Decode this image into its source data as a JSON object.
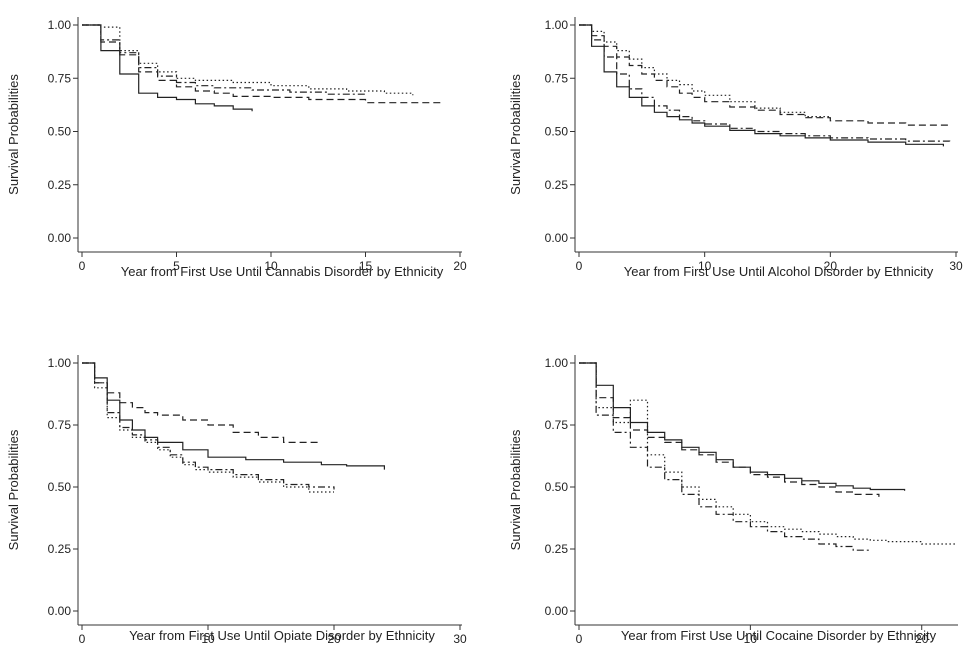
{
  "chart_data": [
    {
      "type": "line",
      "xlabel": "Year from First Use Until Cannabis Disorder by Ethnicity",
      "ylabel": "Survival Probabilities",
      "xlim": [
        0,
        20
      ],
      "ylim": [
        0,
        1
      ],
      "xticks": [
        0,
        5,
        10,
        15,
        20
      ],
      "yticks": [
        0,
        0.25,
        0.5,
        0.75,
        1.0
      ],
      "xtick_labels": [
        "0",
        "5",
        "10",
        "15",
        "20"
      ],
      "ytick_labels": [
        "0.00",
        "0.25",
        "0.50",
        "0.75",
        "1.00"
      ],
      "grid": false,
      "series": [
        {
          "style": "solid",
          "x": [
            0,
            1,
            2,
            3,
            4,
            5,
            6,
            7,
            8,
            9
          ],
          "y": [
            1.0,
            0.88,
            0.77,
            0.68,
            0.66,
            0.65,
            0.63,
            0.62,
            0.605,
            0.595
          ]
        },
        {
          "style": "dashed",
          "x": [
            0,
            1,
            2,
            3,
            4,
            5,
            6,
            7,
            8,
            10,
            12,
            15,
            19
          ],
          "y": [
            1.0,
            0.92,
            0.86,
            0.78,
            0.74,
            0.71,
            0.69,
            0.68,
            0.665,
            0.66,
            0.65,
            0.635,
            0.63
          ]
        },
        {
          "style": "dash-dot",
          "x": [
            0,
            1,
            2,
            3,
            4,
            5,
            6,
            7,
            9,
            11,
            13,
            15
          ],
          "y": [
            1.0,
            0.93,
            0.87,
            0.8,
            0.76,
            0.73,
            0.715,
            0.705,
            0.695,
            0.685,
            0.675,
            0.665
          ]
        },
        {
          "style": "dotted",
          "x": [
            0,
            1,
            2,
            3,
            4,
            5,
            6,
            8,
            10,
            12,
            14,
            16,
            17.5
          ],
          "y": [
            1.0,
            0.99,
            0.88,
            0.82,
            0.78,
            0.75,
            0.74,
            0.73,
            0.715,
            0.7,
            0.69,
            0.68,
            0.67
          ]
        }
      ]
    },
    {
      "type": "line",
      "xlabel": "Year from First Use Until Alcohol Disorder by Ethnicity",
      "ylabel": "Survival Probabilities",
      "xlim": [
        0,
        30
      ],
      "ylim": [
        0,
        1
      ],
      "xticks": [
        0,
        10,
        20,
        30
      ],
      "yticks": [
        0,
        0.25,
        0.5,
        0.75,
        1.0
      ],
      "xtick_labels": [
        "0",
        "10",
        "20",
        "30"
      ],
      "ytick_labels": [
        "0.00",
        "0.25",
        "0.50",
        "0.75",
        "1.00"
      ],
      "grid": false,
      "series": [
        {
          "style": "solid",
          "x": [
            0,
            1,
            2,
            3,
            4,
            5,
            6,
            7,
            8,
            9,
            10,
            12,
            14,
            16,
            18,
            20,
            23,
            26,
            29
          ],
          "y": [
            1.0,
            0.9,
            0.78,
            0.71,
            0.66,
            0.62,
            0.59,
            0.57,
            0.555,
            0.54,
            0.525,
            0.505,
            0.49,
            0.48,
            0.47,
            0.46,
            0.45,
            0.44,
            0.43
          ]
        },
        {
          "style": "dashed",
          "x": [
            0,
            1,
            2,
            3,
            4,
            5,
            6,
            7,
            8,
            9,
            10,
            12,
            14,
            16,
            18,
            20,
            23,
            26,
            29.5
          ],
          "y": [
            1.0,
            0.95,
            0.9,
            0.85,
            0.81,
            0.77,
            0.74,
            0.71,
            0.68,
            0.66,
            0.64,
            0.615,
            0.6,
            0.58,
            0.565,
            0.55,
            0.54,
            0.53,
            0.52
          ]
        },
        {
          "style": "dash-dot",
          "x": [
            0,
            1,
            2,
            3,
            4,
            5,
            6,
            7,
            8,
            9,
            10,
            12,
            14,
            16,
            18,
            20,
            23,
            26,
            29.5
          ],
          "y": [
            1.0,
            0.93,
            0.85,
            0.77,
            0.7,
            0.66,
            0.62,
            0.6,
            0.57,
            0.55,
            0.535,
            0.515,
            0.5,
            0.49,
            0.48,
            0.47,
            0.465,
            0.455,
            0.45
          ]
        },
        {
          "style": "dotted",
          "x": [
            0,
            1,
            2,
            3,
            4,
            5,
            6,
            7,
            8,
            9,
            10,
            12,
            14,
            16,
            18,
            20
          ],
          "y": [
            1.0,
            0.97,
            0.92,
            0.88,
            0.84,
            0.8,
            0.77,
            0.74,
            0.72,
            0.69,
            0.67,
            0.64,
            0.61,
            0.59,
            0.57,
            0.56
          ]
        }
      ]
    },
    {
      "type": "line",
      "xlabel": "Year from First Use Until Opiate Disorder by Ethnicity",
      "ylabel": "Survival Probabilities",
      "xlim": [
        0,
        30
      ],
      "ylim": [
        0,
        1
      ],
      "xticks": [
        0,
        10,
        20,
        30
      ],
      "yticks": [
        0,
        0.25,
        0.5,
        0.75,
        1.0
      ],
      "xtick_labels": [
        "0",
        "10",
        "20",
        "30"
      ],
      "ytick_labels": [
        "0.00",
        "0.25",
        "0.50",
        "0.75",
        "1.00"
      ],
      "grid": false,
      "series": [
        {
          "style": "solid",
          "x": [
            0,
            1,
            2,
            3,
            4,
            5,
            6,
            8,
            10,
            13,
            16,
            19,
            21,
            24
          ],
          "y": [
            1.0,
            0.94,
            0.85,
            0.77,
            0.73,
            0.7,
            0.68,
            0.65,
            0.62,
            0.61,
            0.6,
            0.59,
            0.585,
            0.57
          ]
        },
        {
          "style": "dashed",
          "x": [
            0,
            1,
            2,
            3,
            4,
            5,
            6,
            8,
            10,
            12,
            14,
            16,
            19
          ],
          "y": [
            1.0,
            0.92,
            0.88,
            0.84,
            0.82,
            0.8,
            0.79,
            0.77,
            0.75,
            0.72,
            0.7,
            0.68,
            0.68
          ]
        },
        {
          "style": "dash-dot",
          "x": [
            0,
            1,
            2,
            3,
            4,
            5,
            6,
            7,
            8,
            9,
            10,
            12,
            14,
            16,
            18,
            20
          ],
          "y": [
            1.0,
            0.92,
            0.8,
            0.74,
            0.71,
            0.69,
            0.66,
            0.63,
            0.6,
            0.58,
            0.57,
            0.55,
            0.53,
            0.51,
            0.5,
            0.49
          ]
        },
        {
          "style": "dotted",
          "x": [
            0,
            1,
            2,
            3,
            4,
            5,
            6,
            7,
            8,
            9,
            10,
            12,
            14,
            16,
            18,
            20
          ],
          "y": [
            1.0,
            0.9,
            0.78,
            0.73,
            0.7,
            0.68,
            0.65,
            0.62,
            0.59,
            0.57,
            0.56,
            0.54,
            0.52,
            0.5,
            0.48,
            0.48
          ]
        }
      ]
    },
    {
      "type": "line",
      "xlabel": "Year from First Use Until Cocaine Disorder by Ethnicity",
      "ylabel": "Survival Probabilities",
      "xlim": [
        0,
        22
      ],
      "ylim": [
        0,
        1
      ],
      "xticks": [
        0,
        10,
        20
      ],
      "yticks": [
        0,
        0.25,
        0.5,
        0.75,
        1.0
      ],
      "xtick_labels": [
        "0",
        "10",
        "20"
      ],
      "ytick_labels": [
        "0.00",
        "0.25",
        "0.50",
        "0.75",
        "1.00"
      ],
      "grid": false,
      "series": [
        {
          "style": "solid",
          "x": [
            0,
            1,
            2,
            3,
            4,
            5,
            6,
            7,
            8,
            9,
            10,
            11,
            12,
            13,
            14,
            15,
            16,
            17,
            19
          ],
          "y": [
            1.0,
            0.91,
            0.82,
            0.76,
            0.72,
            0.69,
            0.66,
            0.64,
            0.61,
            0.58,
            0.56,
            0.55,
            0.535,
            0.525,
            0.515,
            0.505,
            0.495,
            0.49,
            0.485
          ]
        },
        {
          "style": "dashed",
          "x": [
            0,
            1,
            2,
            3,
            4,
            5,
            6,
            7,
            8,
            9,
            10,
            11,
            12,
            13,
            14,
            15,
            16,
            17.5
          ],
          "y": [
            1.0,
            0.86,
            0.78,
            0.73,
            0.7,
            0.68,
            0.65,
            0.63,
            0.6,
            0.58,
            0.55,
            0.54,
            0.52,
            0.51,
            0.5,
            0.48,
            0.47,
            0.46
          ]
        },
        {
          "style": "dash-dot",
          "x": [
            0,
            1,
            2,
            3,
            4,
            5,
            6,
            7,
            8,
            9,
            10,
            11,
            12,
            13,
            14,
            15,
            16,
            17
          ],
          "y": [
            1.0,
            0.79,
            0.72,
            0.66,
            0.58,
            0.53,
            0.47,
            0.42,
            0.39,
            0.36,
            0.34,
            0.32,
            0.3,
            0.29,
            0.27,
            0.26,
            0.245,
            0.24
          ]
        },
        {
          "style": "dotted",
          "x": [
            0,
            1,
            2,
            3,
            4,
            5,
            6,
            7,
            8,
            9,
            10,
            11,
            12,
            13,
            14,
            15,
            16,
            17,
            18,
            20,
            22
          ],
          "y": [
            1.0,
            0.82,
            0.76,
            0.85,
            0.63,
            0.56,
            0.5,
            0.45,
            0.42,
            0.39,
            0.36,
            0.34,
            0.33,
            0.32,
            0.31,
            0.3,
            0.29,
            0.285,
            0.28,
            0.27,
            0.265
          ]
        }
      ]
    }
  ]
}
